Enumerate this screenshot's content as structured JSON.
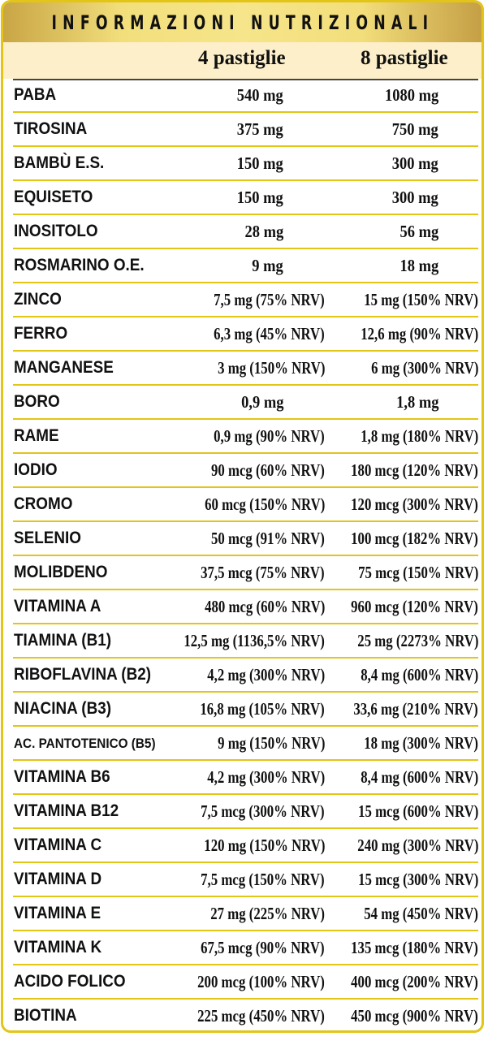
{
  "title": "INFORMAZIONI NUTRIZIONALI",
  "columns": [
    "4 pastiglie",
    "8 pastiglie"
  ],
  "colors": {
    "border": "#e2c516",
    "header_gold": "#f2df7c",
    "subheader": "#fcefc9"
  },
  "rows": [
    {
      "name": "PABA",
      "v4": "540 mg",
      "v8": "1080 mg"
    },
    {
      "name": "TIROSINA",
      "v4": "375 mg",
      "v8": "750 mg"
    },
    {
      "name": "BAMBÙ E.S.",
      "v4": "150 mg",
      "v8": "300 mg"
    },
    {
      "name": "EQUISETO",
      "v4": "150 mg",
      "v8": "300 mg"
    },
    {
      "name": "INOSITOLO",
      "v4": "28 mg",
      "v8": "56 mg"
    },
    {
      "name": "ROSMARINO O.E.",
      "v4": "9 mg",
      "v8": "18 mg"
    },
    {
      "name": "ZINCO",
      "v4": "7,5 mg (75% NRV)",
      "v8": "15 mg (150% NRV)"
    },
    {
      "name": "FERRO",
      "v4": "6,3 mg (45% NRV)",
      "v8": "12,6 mg (90% NRV)"
    },
    {
      "name": "MANGANESE",
      "v4": "3 mg (150% NRV)",
      "v8": "6 mg (300% NRV)"
    },
    {
      "name": "BORO",
      "v4": "0,9 mg",
      "v8": "1,8 mg"
    },
    {
      "name": "RAME",
      "v4": "0,9 mg (90% NRV)",
      "v8": "1,8 mg (180% NRV)"
    },
    {
      "name": "IODIO",
      "v4": "90 mcg (60% NRV)",
      "v8": "180 mcg (120% NRV)"
    },
    {
      "name": "CROMO",
      "v4": "60 mcg (150% NRV)",
      "v8": "120 mcg (300% NRV)"
    },
    {
      "name": "SELENIO",
      "v4": "50 mcg (91% NRV)",
      "v8": "100 mcg (182% NRV)"
    },
    {
      "name": "MOLIBDENO",
      "v4": "37,5 mcg (75% NRV)",
      "v8": "75 mcg (150% NRV)"
    },
    {
      "name": "VITAMINA A",
      "v4": "480 mcg (60% NRV)",
      "v8": "960 mcg (120% NRV)"
    },
    {
      "name": "TIAMINA (B1)",
      "v4": "12,5 mg (1136,5% NRV)",
      "v8": "25 mg (2273% NRV)"
    },
    {
      "name": "RIBOFLAVINA (B2)",
      "v4": "4,2 mg (300% NRV)",
      "v8": "8,4 mg (600% NRV)"
    },
    {
      "name": "NIACINA (B3)",
      "v4": "16,8 mg (105% NRV)",
      "v8": "33,6 mg (210% NRV)"
    },
    {
      "name": "AC. PANTOTENICO (B5)",
      "v4": "9 mg (150% NRV)",
      "v8": "18 mg (300% NRV)"
    },
    {
      "name": "VITAMINA B6",
      "v4": "4,2 mg (300% NRV)",
      "v8": "8,4 mg (600% NRV)"
    },
    {
      "name": "VITAMINA B12",
      "v4": "7,5 mcg (300% NRV)",
      "v8": "15 mcg (600% NRV)"
    },
    {
      "name": "VITAMINA C",
      "v4": "120 mg (150% NRV)",
      "v8": "240 mg (300% NRV)"
    },
    {
      "name": "VITAMINA D",
      "v4": "7,5 mcg (150% NRV)",
      "v8": "15 mcg (300% NRV)"
    },
    {
      "name": "VITAMINA E",
      "v4": "27 mg (225% NRV)",
      "v8": "54 mg (450% NRV)"
    },
    {
      "name": "VITAMINA K",
      "v4": "67,5 mcg (90% NRV)",
      "v8": "135 mcg (180% NRV)"
    },
    {
      "name": "ACIDO FOLICO",
      "v4": "200 mcg (100% NRV)",
      "v8": "400 mcg (200% NRV)"
    },
    {
      "name": "BIOTINA",
      "v4": "225 mcg (450% NRV)",
      "v8": "450 mcg (900% NRV)"
    }
  ]
}
